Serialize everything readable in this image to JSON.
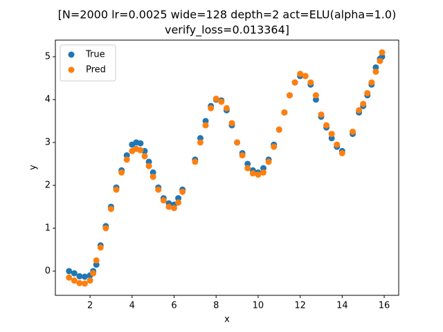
{
  "chart_data": {
    "type": "scatter",
    "title": [
      "[N=2000 lr=0.0025 wide=128 depth=2 act=ELU(alpha=1.0)",
      "verify_loss=0.013364]"
    ],
    "x_label": "x",
    "y_label": "y",
    "x": [
      1.0,
      1.25,
      1.5,
      1.75,
      2.0,
      2.15,
      2.3,
      2.5,
      2.75,
      3.0,
      3.25,
      3.5,
      3.75,
      4.0,
      4.2,
      4.4,
      4.6,
      4.8,
      5.0,
      5.25,
      5.5,
      5.75,
      6.0,
      6.2,
      6.4,
      7.0,
      7.25,
      7.5,
      7.75,
      8.0,
      8.25,
      8.5,
      8.75,
      9.0,
      9.25,
      9.5,
      9.75,
      10.0,
      10.25,
      10.5,
      10.75,
      11.0,
      11.25,
      11.5,
      11.75,
      12.0,
      12.25,
      12.5,
      12.75,
      13.0,
      13.25,
      13.5,
      13.75,
      14.0,
      14.5,
      14.8,
      15.0,
      15.2,
      15.4,
      15.6,
      15.8,
      15.9
    ],
    "series": [
      {
        "name": "True",
        "color": "#1f77b4",
        "values": [
          0.0,
          -0.05,
          -0.12,
          -0.13,
          -0.1,
          0.0,
          0.15,
          0.6,
          1.05,
          1.5,
          1.95,
          2.35,
          2.7,
          2.95,
          3.0,
          2.98,
          2.8,
          2.55,
          2.3,
          1.95,
          1.7,
          1.58,
          1.55,
          1.7,
          1.9,
          2.6,
          3.1,
          3.5,
          3.85,
          4.0,
          3.98,
          3.75,
          3.4,
          3.0,
          2.75,
          2.5,
          2.35,
          2.3,
          2.4,
          2.6,
          2.95,
          3.3,
          3.7,
          4.1,
          4.4,
          4.55,
          4.55,
          4.35,
          4.0,
          3.6,
          3.35,
          3.1,
          2.9,
          2.8,
          3.2,
          3.7,
          3.85,
          4.1,
          4.35,
          4.75,
          4.95,
          5.0
        ]
      },
      {
        "name": "Pred",
        "color": "#ff7f0e",
        "values": [
          -0.15,
          -0.22,
          -0.28,
          -0.29,
          -0.22,
          -0.05,
          0.25,
          0.55,
          1.0,
          1.45,
          1.9,
          2.3,
          2.6,
          2.8,
          2.85,
          2.82,
          2.68,
          2.45,
          2.2,
          1.9,
          1.65,
          1.5,
          1.47,
          1.6,
          1.85,
          2.55,
          3.0,
          3.4,
          3.8,
          4.02,
          3.95,
          3.8,
          3.45,
          3.0,
          2.7,
          2.4,
          2.28,
          2.25,
          2.3,
          2.55,
          2.9,
          3.3,
          3.7,
          4.1,
          4.4,
          4.6,
          4.55,
          4.4,
          4.1,
          3.65,
          3.4,
          3.2,
          2.95,
          2.75,
          3.25,
          3.75,
          3.9,
          4.15,
          4.4,
          4.65,
          4.9,
          5.1
        ]
      }
    ],
    "xlim": [
      0.35,
      16.69
    ],
    "ylim": [
      -0.565,
      5.387
    ],
    "xticks": [
      2,
      4,
      6,
      8,
      10,
      12,
      14,
      16
    ],
    "yticks": [
      0,
      1,
      2,
      3,
      4,
      5
    ],
    "legend": "upper left"
  }
}
